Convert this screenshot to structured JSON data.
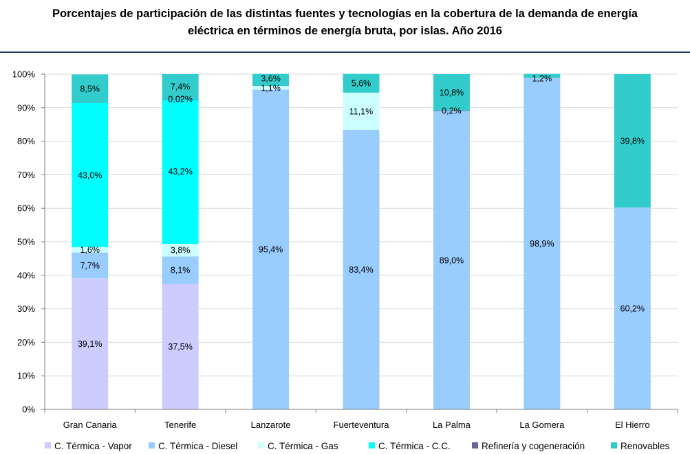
{
  "title": {
    "line1": "Porcentajes de participación de las distintas fuentes y tecnologías en la cobertura de la demanda de energía",
    "line2": "eléctrica en términos de energía bruta, por islas. Año 2016"
  },
  "chart_data": {
    "type": "bar",
    "stacked": true,
    "title": "Porcentajes de participación de las distintas fuentes y tecnologías en la cobertura de la demanda de energía eléctrica en términos de energía bruta, por islas. Año 2016",
    "categories": [
      "Gran Canaria",
      "Tenerife",
      "Lanzarote",
      "Fuerteventura",
      "La Palma",
      "La Gomera",
      "El Hierro"
    ],
    "y_ticks": [
      "0%",
      "10%",
      "20%",
      "30%",
      "40%",
      "50%",
      "60%",
      "70%",
      "80%",
      "90%",
      "100%"
    ],
    "ylim": [
      0,
      100
    ],
    "grid": true,
    "legend_position": "bottom",
    "series": [
      {
        "name": "C. Térmica - Vapor",
        "color": "#ccccff",
        "values": [
          39.1,
          37.5,
          0,
          0,
          0,
          0,
          0
        ],
        "labels": [
          "39,1%",
          "37,5%",
          "",
          "",
          "",
          "",
          ""
        ]
      },
      {
        "name": "C. Térmica - Diesel",
        "color": "#99ccff",
        "values": [
          7.7,
          8.1,
          95.4,
          83.4,
          89.0,
          98.9,
          60.2
        ],
        "labels": [
          "7,7%",
          "8,1%",
          "95,4%",
          "83,4%",
          "89,0%",
          "98,9%",
          "60,2%"
        ]
      },
      {
        "name": "C. Térmica - Gas",
        "color": "#ccffff",
        "values": [
          1.6,
          3.8,
          1.1,
          11.1,
          0,
          0,
          0
        ],
        "labels": [
          "1,6%",
          "3,8%",
          "1,1%",
          "11,1%",
          "",
          "",
          ""
        ]
      },
      {
        "name": "C. Térmica - C.C.",
        "color": "#00ffff",
        "values": [
          43.0,
          43.2,
          0,
          0,
          0,
          0,
          0
        ],
        "labels": [
          "43,0%",
          "43,2%",
          "",
          "",
          "",
          "",
          ""
        ]
      },
      {
        "name": "Refinería y cogeneración",
        "color": "#666699",
        "values": [
          0,
          0.02,
          0,
          0,
          0.2,
          0,
          0
        ],
        "labels": [
          "",
          "0,02%",
          "",
          "",
          "0,2%",
          "",
          ""
        ]
      },
      {
        "name": "Renovables",
        "color": "#33cccc",
        "values": [
          8.5,
          7.4,
          3.6,
          5.6,
          10.8,
          1.2,
          39.8
        ],
        "labels": [
          "8,5%",
          "7,4%",
          "3,6%",
          "5,6%",
          "10,8%",
          "1,2%",
          "39,8%"
        ]
      }
    ]
  }
}
